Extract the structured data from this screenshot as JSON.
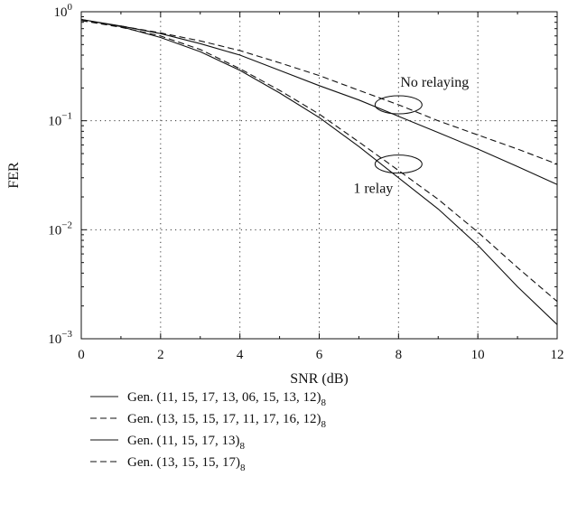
{
  "chart_data": {
    "type": "line",
    "xlabel": "SNR (dB)",
    "ylabel": "FER",
    "xlim": [
      0,
      12
    ],
    "ylim": [
      0.001,
      1
    ],
    "yscale": "log",
    "grid": "dotted",
    "legend_placement": "below",
    "x_ticks": [
      0,
      2,
      4,
      6,
      8,
      10,
      12
    ],
    "y_ticks": [
      {
        "value": 1,
        "base": "10",
        "exp": "0"
      },
      {
        "value": 0.1,
        "base": "10",
        "exp": "−1"
      },
      {
        "value": 0.01,
        "base": "10",
        "exp": "−2"
      },
      {
        "value": 0.001,
        "base": "10",
        "exp": "−3"
      }
    ],
    "annotations": [
      {
        "text": "No relaying",
        "x": 8.0,
        "y": 0.14
      },
      {
        "text": "1 relay",
        "x": 8.0,
        "y": 0.04
      }
    ],
    "series": [
      {
        "style": "solid",
        "x": [
          0,
          1,
          2,
          3,
          4,
          5,
          6,
          7,
          8,
          9,
          10,
          11,
          12
        ],
        "y": [
          0.85,
          0.74,
          0.63,
          0.51,
          0.4,
          0.29,
          0.21,
          0.155,
          0.11,
          0.078,
          0.055,
          0.038,
          0.026
        ]
      },
      {
        "style": "dashed",
        "x": [
          0,
          1,
          2,
          3,
          4,
          5,
          6,
          7,
          8,
          9,
          10,
          11,
          12
        ],
        "y": [
          0.83,
          0.74,
          0.64,
          0.54,
          0.44,
          0.34,
          0.26,
          0.19,
          0.14,
          0.1,
          0.074,
          0.055,
          0.04
        ]
      },
      {
        "style": "solid",
        "x": [
          0,
          1,
          2,
          3,
          4,
          5,
          6,
          7,
          8,
          9,
          10,
          11,
          12
        ],
        "y": [
          0.85,
          0.73,
          0.58,
          0.43,
          0.29,
          0.18,
          0.107,
          0.058,
          0.03,
          0.0155,
          0.0072,
          0.003,
          0.00135
        ]
      },
      {
        "style": "dashed",
        "x": [
          0,
          1,
          2,
          3,
          4,
          5,
          6,
          7,
          8,
          9,
          10,
          11,
          12
        ],
        "y": [
          0.83,
          0.72,
          0.6,
          0.45,
          0.3,
          0.19,
          0.115,
          0.064,
          0.035,
          0.019,
          0.0095,
          0.0045,
          0.0022
        ]
      }
    ]
  },
  "legend": [
    {
      "style": "solid",
      "prefix": "Gen. ",
      "body": "(11, 15, 17, 13, 06, 15, 13, 12)",
      "sub": "8"
    },
    {
      "style": "dashed",
      "prefix": "Gen. ",
      "body": "(13, 15, 15, 17, 11, 17, 16, 12)",
      "sub": "8"
    },
    {
      "style": "solid",
      "prefix": "Gen. ",
      "body": "(11, 15, 17, 13)",
      "sub": "8"
    },
    {
      "style": "dashed",
      "prefix": "Gen. ",
      "body": "(13, 15, 15, 17)",
      "sub": "8"
    }
  ]
}
